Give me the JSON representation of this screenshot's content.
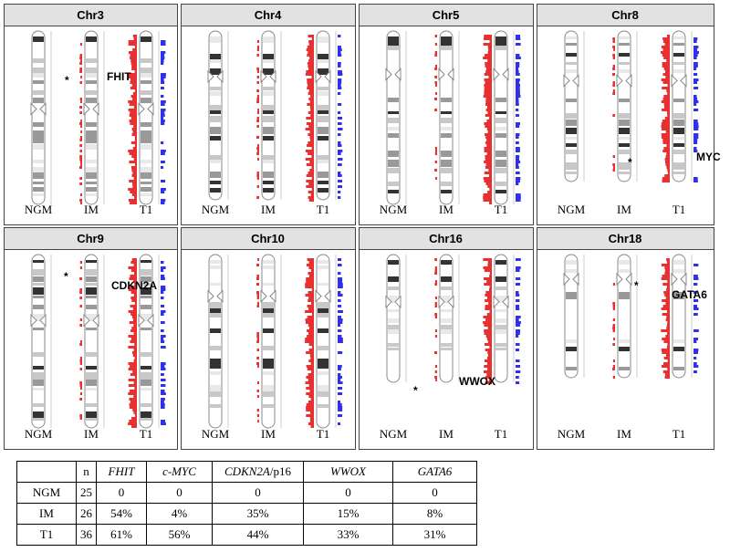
{
  "panels": [
    {
      "title": "Chr3",
      "labels": [
        "NGM",
        "IM",
        "T1"
      ],
      "annotations": [
        "*",
        "FHIT"
      ]
    },
    {
      "title": "Chr4",
      "labels": [
        "NGM",
        "IM",
        "T1"
      ],
      "annotations": []
    },
    {
      "title": "Chr5",
      "labels": [
        "NGM",
        "IM",
        "T1"
      ],
      "annotations": []
    },
    {
      "title": "Chr8",
      "labels": [
        "NGM",
        "IM",
        "T1"
      ],
      "annotations": [
        "*",
        "MYC"
      ]
    },
    {
      "title": "Chr9",
      "labels": [
        "NGM",
        "IM",
        "T1"
      ],
      "annotations": [
        "*",
        "CDKN2A"
      ]
    },
    {
      "title": "Chr10",
      "labels": [
        "NGM",
        "IM",
        "T1"
      ],
      "annotations": []
    },
    {
      "title": "Chr16",
      "labels": [
        "NGM",
        "IM",
        "T1"
      ],
      "annotations": [
        "*",
        "WWOX"
      ]
    },
    {
      "title": "Chr18",
      "labels": [
        "NGM",
        "IM",
        "T1"
      ],
      "annotations": [
        "*",
        "GATA6"
      ]
    }
  ],
  "table": {
    "header": [
      "n",
      "FHIT",
      "c-MYC",
      {
        "gene": "CDKN2A",
        "suffix": "/p16"
      },
      "WWOX",
      "GATA6"
    ],
    "rows": [
      [
        "NGM",
        "25",
        "0",
        "0",
        "0",
        "0",
        "0"
      ],
      [
        "IM",
        "26",
        "54%",
        "4%",
        "35%",
        "15%",
        "8%"
      ],
      [
        "T1",
        "36",
        "61%",
        "56%",
        "44%",
        "33%",
        "31%"
      ]
    ]
  }
}
